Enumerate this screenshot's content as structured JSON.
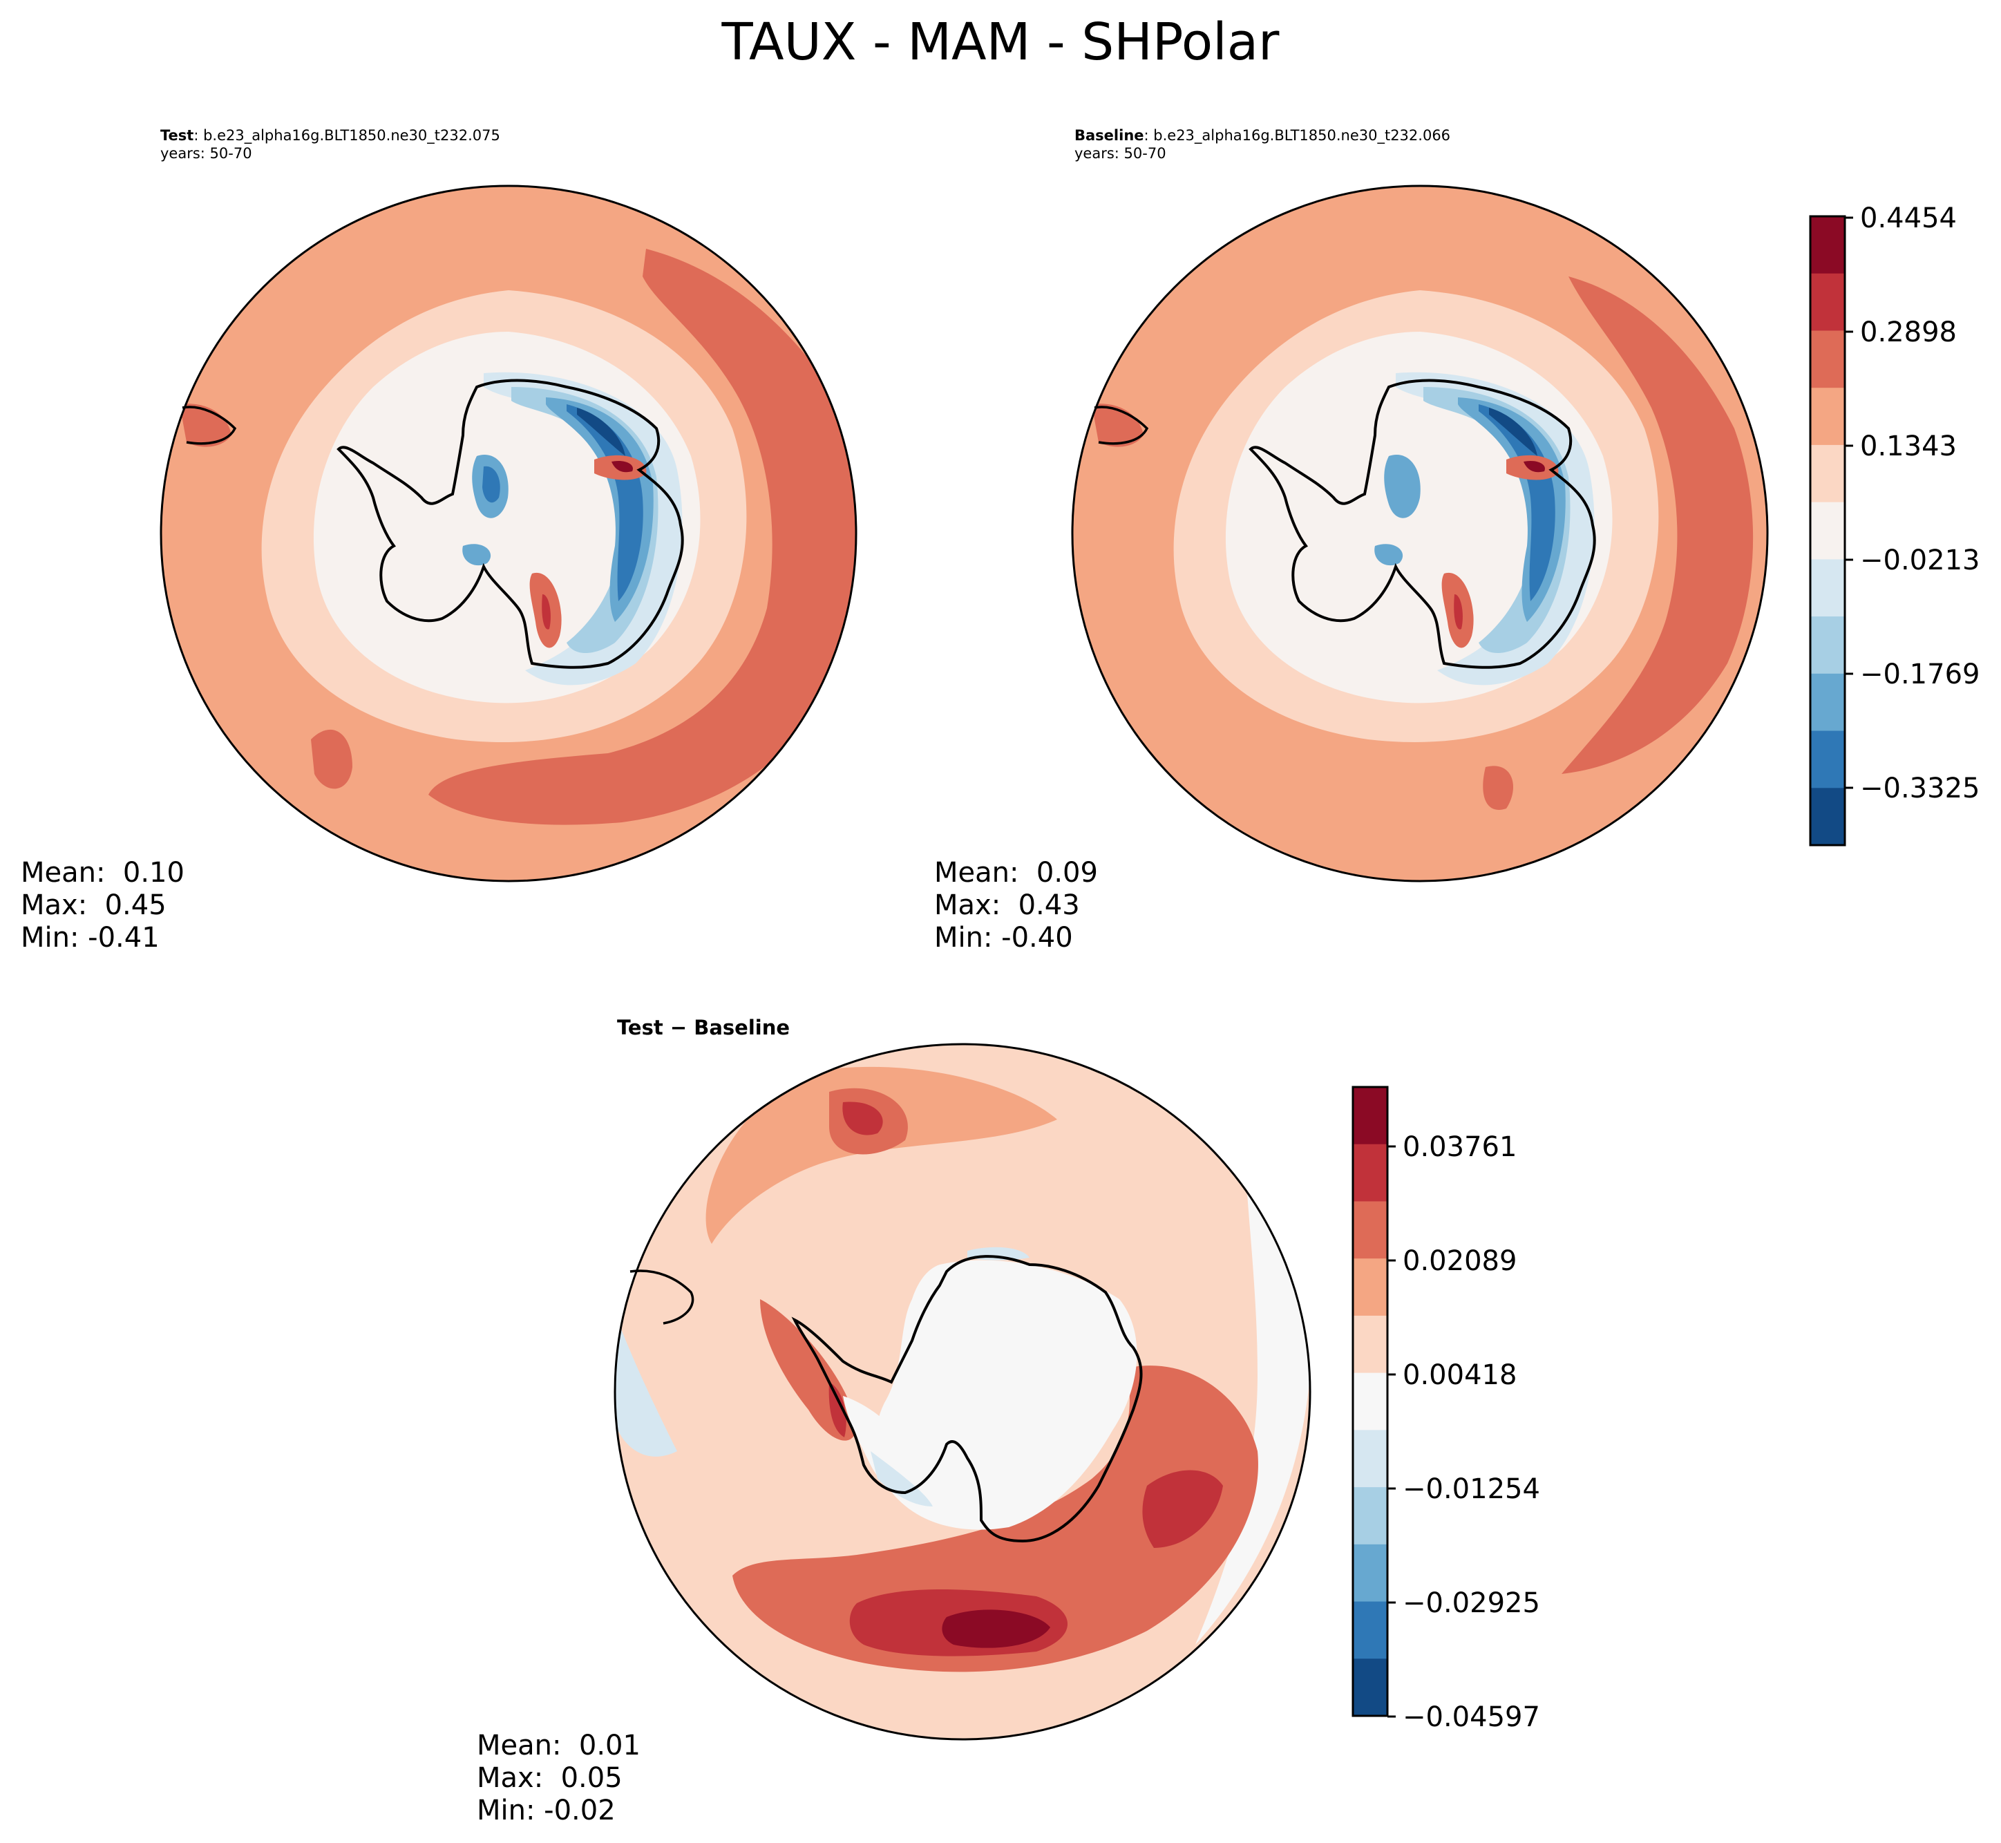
{
  "figure": {
    "title": "TAUX - MAM - SHPolar"
  },
  "panels": [
    {
      "role": "test",
      "label": "Test",
      "case": ": b.e23_alpha16g.BLT1850.ne30_t232.075",
      "years": "years: 50-70",
      "stats": {
        "mean": "Mean:  0.10",
        "max": "Max:  0.45",
        "min": "Min: -0.41"
      }
    },
    {
      "role": "baseline",
      "label": "Baseline",
      "case": ": b.e23_alpha16g.BLT1850.ne30_t232.066",
      "years": "years: 50-70",
      "stats": {
        "mean": "Mean:  0.09",
        "max": "Max:  0.43",
        "min": "Min: -0.40"
      }
    },
    {
      "role": "difference",
      "label": "Test − Baseline",
      "stats": {
        "mean": "Mean:  0.01",
        "max": "Max:  0.05",
        "min": "Min: -0.02"
      }
    }
  ],
  "colorbars": {
    "main": {
      "tick_labels": [
        "0.4454",
        "0.2898",
        "0.1343",
        "−0.0213",
        "−0.1769",
        "−0.3325"
      ],
      "colors": [
        "#8b0a25",
        "#c1323a",
        "#de6b57",
        "#f4a683",
        "#fbd7c4",
        "#f7f2ef",
        "#d6e7f1",
        "#a7cfe4",
        "#67a8d0",
        "#2f78b6",
        "#124a85"
      ]
    },
    "diff": {
      "tick_labels": [
        "0.03761",
        "0.02089",
        "0.00418",
        "−0.01254",
        "−0.02925",
        "−0.04597"
      ],
      "colors": [
        "#8b0a25",
        "#c1323a",
        "#de6b57",
        "#f4a683",
        "#fbd7c4",
        "#f7f7f7",
        "#d6e7f1",
        "#a7cfe4",
        "#67a8d0",
        "#2f78b6",
        "#124a85"
      ]
    }
  },
  "chart_data": {
    "type": "heatmap",
    "projection": "south polar stereographic",
    "variable": "TAUX",
    "season": "MAM",
    "region": "SHPolar",
    "main_levels": [
      "0.4454",
      "0.2898",
      "0.1343",
      "−0.0213",
      "−0.1769",
      "−0.3325"
    ],
    "diff_levels": [
      "0.03761",
      "0.02089",
      "0.00418",
      "−0.01254",
      "−0.02925",
      "−0.04597"
    ],
    "summary": [
      {
        "panel": "Test",
        "mean": 0.1,
        "max": 0.45,
        "min": -0.41
      },
      {
        "panel": "Baseline",
        "mean": 0.09,
        "max": 0.43,
        "min": -0.4
      },
      {
        "panel": "Test − Baseline",
        "mean": 0.01,
        "max": 0.05,
        "min": -0.02
      }
    ]
  }
}
